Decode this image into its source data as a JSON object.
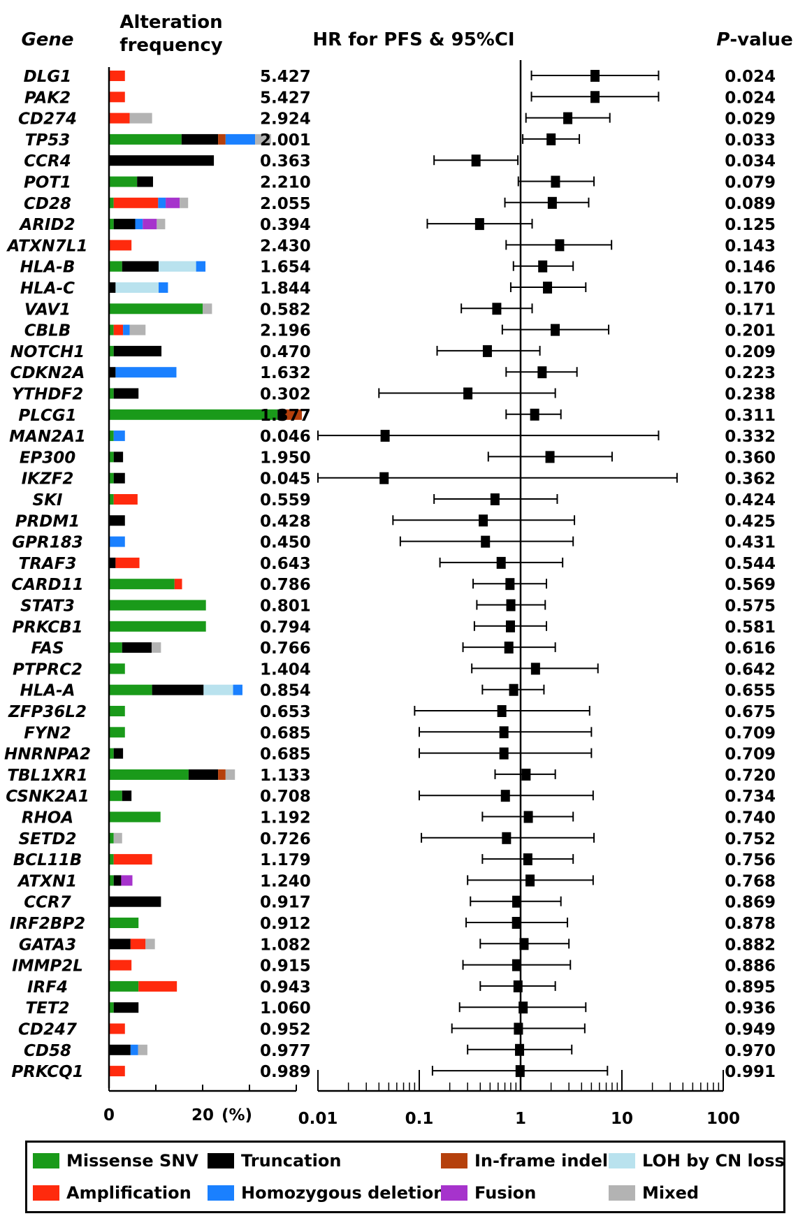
{
  "headers": {
    "gene": "Gene",
    "freq_line1": "Alteration",
    "freq_line2": "frequency",
    "hr": "HR for PFS & 95%CI",
    "p_italic": "P",
    "p_rest": "-value"
  },
  "colors": {
    "missense": "#1a9a1a",
    "truncation": "#000000",
    "inframe": "#b5400c",
    "loh": "#b9e2ee",
    "amplification": "#ff2a0d",
    "homdel": "#1a80ff",
    "fusion": "#a633cc",
    "mixed": "#b3b3b3"
  },
  "legend": [
    {
      "key": "missense",
      "label": "Missense SNV"
    },
    {
      "key": "truncation",
      "label": "Truncation"
    },
    {
      "key": "inframe",
      "label": "In-frame indel"
    },
    {
      "key": "loh",
      "label": "LOH by CN loss"
    },
    {
      "key": "amplification",
      "label": "Amplification"
    },
    {
      "key": "homdel",
      "label": "Homozygous deletion"
    },
    {
      "key": "fusion",
      "label": "Fusion"
    },
    {
      "key": "mixed",
      "label": "Mixed"
    }
  ],
  "chart_data": [
    {
      "type": "bar",
      "orientation": "horizontal",
      "stacked": true,
      "title": "Alteration frequency",
      "unit": "(%)",
      "xlim": [
        0,
        40
      ],
      "xticks": [
        "0",
        "20"
      ],
      "categories": [
        "DLG1",
        "PAK2",
        "CD274",
        "TP53",
        "CCR4",
        "POT1",
        "CD28",
        "ARID2",
        "ATXN7L1",
        "HLA-B",
        "HLA-C",
        "VAV1",
        "CBLB",
        "NOTCH1",
        "CDKN2A",
        "YTHDF2",
        "PLCG1",
        "MAN2A1",
        "EP300",
        "IKZF2",
        "SKI",
        "PRDM1",
        "GPR183",
        "TRAF3",
        "CARD11",
        "STAT3",
        "PRKCB1",
        "FAS",
        "PTPRC2",
        "HLA-A",
        "ZFP36L2",
        "FYN2",
        "HNRNPA2",
        "TBL1XR1",
        "CSNK2A1",
        "RHOA",
        "SETD2",
        "BCL11B",
        "ATXN1",
        "CCR7",
        "IRF2BP2",
        "GATA3",
        "IMMP2L",
        "IRF4",
        "TET2",
        "CD247",
        "CD58",
        "PRKCQ1"
      ],
      "series": [
        {
          "name": "Missense SNV",
          "key": "missense",
          "values": [
            0,
            0,
            0,
            15.5,
            0,
            6,
            1,
            1,
            0,
            2.8,
            0,
            20,
            1,
            1,
            0,
            1,
            36,
            1,
            1,
            1,
            1,
            0,
            0,
            0,
            14,
            20.7,
            20.7,
            2.8,
            3.4,
            9.2,
            3.4,
            3.4,
            1,
            17,
            2.8,
            11,
            1,
            1,
            1,
            0,
            6.3,
            0,
            0,
            6.3,
            1,
            0,
            0,
            0
          ]
        },
        {
          "name": "Truncation",
          "key": "truncation",
          "values": [
            0,
            0,
            0,
            7.8,
            22.4,
            3.4,
            0,
            4.6,
            0,
            7.8,
            1.4,
            0,
            0,
            10.2,
            1.4,
            5.3,
            1.4,
            0,
            2,
            2.4,
            0,
            3.4,
            0,
            1.4,
            0,
            0,
            0,
            6.3,
            0,
            11,
            0,
            0,
            2,
            6.3,
            2,
            0,
            0,
            0,
            1.6,
            11.1,
            0,
            4.6,
            0,
            0,
            5.3,
            0,
            4.6,
            0
          ]
        },
        {
          "name": "In-frame indel",
          "key": "inframe",
          "values": [
            0,
            0,
            0,
            1.6,
            0,
            0,
            0,
            0,
            0,
            0,
            0,
            0,
            0,
            0,
            0,
            0,
            3.8,
            0,
            0,
            0,
            0,
            0,
            0,
            0,
            0,
            0,
            0,
            0,
            0,
            0,
            0,
            0,
            0,
            1.6,
            0,
            0,
            0,
            0,
            0,
            0,
            0,
            0,
            0,
            0,
            0,
            0,
            0,
            0
          ]
        },
        {
          "name": "LOH by CN loss",
          "key": "loh",
          "values": [
            0,
            0,
            0,
            0,
            0,
            0,
            0,
            0,
            0,
            8,
            9.2,
            0,
            0,
            0,
            0,
            0,
            0,
            0,
            0,
            0,
            0,
            0,
            0,
            0,
            0,
            0,
            0,
            0,
            0,
            6.3,
            0,
            0,
            0,
            0,
            0,
            0,
            0,
            0,
            0,
            0,
            0,
            0,
            0,
            0,
            0,
            0,
            0,
            0
          ]
        },
        {
          "name": "Amplification",
          "key": "amplification",
          "values": [
            3.4,
            3.4,
            4.4,
            0,
            0,
            0,
            9.5,
            0,
            4.8,
            0,
            0,
            0,
            2,
            0,
            0,
            0,
            0,
            0,
            0,
            0,
            5.1,
            0,
            0,
            5.1,
            1.6,
            0,
            0,
            0,
            0,
            0,
            0,
            0,
            0,
            0,
            0,
            0,
            0,
            8.2,
            0,
            0,
            0,
            3.2,
            4.8,
            8.2,
            0,
            3.4,
            0,
            3.4
          ]
        },
        {
          "name": "Homozygous deletion",
          "key": "homdel",
          "values": [
            0,
            0,
            0,
            6.3,
            0,
            0,
            1.6,
            1.6,
            0,
            2,
            2,
            0,
            1.4,
            0,
            13,
            0,
            0,
            2.4,
            0,
            0,
            0,
            0,
            3.4,
            0,
            0,
            0,
            0,
            0,
            0,
            2,
            0,
            0,
            0,
            0,
            0,
            0,
            0,
            0,
            0,
            0,
            0,
            0,
            0,
            0,
            0,
            0,
            1.6,
            0
          ]
        },
        {
          "name": "Fusion",
          "key": "fusion",
          "values": [
            0,
            0,
            0,
            0,
            0,
            0,
            3,
            3,
            0,
            0,
            0,
            0,
            0,
            0,
            0,
            0,
            0,
            0,
            0,
            0,
            0,
            0,
            0,
            0,
            0,
            0,
            0,
            0,
            0,
            0,
            0,
            0,
            0,
            0,
            0,
            0,
            0,
            0,
            2.4,
            0,
            0,
            0,
            0,
            0,
            0,
            0,
            0,
            0
          ]
        },
        {
          "name": "Mixed",
          "key": "mixed",
          "values": [
            0,
            0,
            4.8,
            3.4,
            0,
            0,
            1.8,
            1.8,
            0,
            0,
            0,
            2,
            3.4,
            0,
            0,
            0,
            0,
            0,
            0,
            0,
            0,
            0,
            0,
            0,
            0,
            0,
            0,
            2,
            0,
            0,
            0,
            0,
            0,
            2,
            0,
            0,
            1.8,
            0,
            0,
            0,
            0,
            2,
            0,
            0,
            0,
            0,
            2,
            0
          ]
        }
      ]
    },
    {
      "type": "scatter",
      "subtype": "forest",
      "title": "HR for PFS & 95%CI",
      "x_scale": "log",
      "xlim": [
        0.01,
        100
      ],
      "xticks": [
        "0.01",
        "0.1",
        "1",
        "10",
        "100"
      ],
      "reference_line": 1,
      "genes": [
        "DLG1",
        "PAK2",
        "CD274",
        "TP53",
        "CCR4",
        "POT1",
        "CD28",
        "ARID2",
        "ATXN7L1",
        "HLA-B",
        "HLA-C",
        "VAV1",
        "CBLB",
        "NOTCH1",
        "CDKN2A",
        "YTHDF2",
        "PLCG1",
        "MAN2A1",
        "EP300",
        "IKZF2",
        "SKI",
        "PRDM1",
        "GPR183",
        "TRAF3",
        "CARD11",
        "STAT3",
        "PRKCB1",
        "FAS",
        "PTPRC2",
        "HLA-A",
        "ZFP36L2",
        "FYN2",
        "HNRNPA2",
        "TBL1XR1",
        "CSNK2A1",
        "RHOA",
        "SETD2",
        "BCL11B",
        "ATXN1",
        "CCR7",
        "IRF2BP2",
        "GATA3",
        "IMMP2L",
        "IRF4",
        "TET2",
        "CD247",
        "CD58",
        "PRKCQ1"
      ],
      "hr": [
        "5.427",
        "5.427",
        "2.924",
        "2.001",
        "0.363",
        "2.210",
        "2.055",
        "0.394",
        "2.430",
        "1.654",
        "1.844",
        "0.582",
        "2.196",
        "0.470",
        "1.632",
        "0.302",
        "1.377",
        "0.046",
        "1.950",
        "0.045",
        "0.559",
        "0.428",
        "0.450",
        "0.643",
        "0.786",
        "0.801",
        "0.794",
        "0.766",
        "1.404",
        "0.854",
        "0.653",
        "0.685",
        "0.685",
        "1.133",
        "0.708",
        "1.192",
        "0.726",
        "1.179",
        "1.240",
        "0.917",
        "0.912",
        "1.082",
        "0.915",
        "0.943",
        "1.060",
        "0.952",
        "0.977",
        "0.989"
      ],
      "ci_low": [
        1.28,
        1.28,
        1.13,
        1.05,
        0.14,
        0.95,
        0.7,
        0.12,
        0.72,
        0.85,
        0.8,
        0.26,
        0.66,
        0.15,
        0.72,
        0.04,
        0.72,
        0.01,
        0.48,
        0.01,
        0.14,
        0.055,
        0.065,
        0.16,
        0.34,
        0.37,
        0.35,
        0.27,
        0.33,
        0.42,
        0.09,
        0.1,
        0.1,
        0.56,
        0.1,
        0.42,
        0.105,
        0.42,
        0.3,
        0.32,
        0.29,
        0.4,
        0.27,
        0.4,
        0.25,
        0.21,
        0.3,
        0.135
      ],
      "ci_high": [
        23,
        23,
        7.6,
        3.8,
        0.94,
        5.3,
        4.7,
        1.3,
        7.9,
        3.3,
        4.4,
        1.3,
        7.4,
        1.55,
        3.6,
        2.2,
        2.5,
        23,
        8,
        35,
        2.3,
        3.4,
        3.3,
        2.6,
        1.8,
        1.75,
        1.8,
        2.2,
        5.8,
        1.7,
        4.8,
        5,
        5,
        2.2,
        5.2,
        3.3,
        5.3,
        3.3,
        5.2,
        2.5,
        2.9,
        3,
        3.1,
        2.2,
        4.4,
        4.3,
        3.2,
        7.2
      ],
      "p_values": [
        "0.024",
        "0.024",
        "0.029",
        "0.033",
        "0.034",
        "0.079",
        "0.089",
        "0.125",
        "0.143",
        "0.146",
        "0.170",
        "0.171",
        "0.201",
        "0.209",
        "0.223",
        "0.238",
        "0.311",
        "0.332",
        "0.360",
        "0.362",
        "0.424",
        "0.425",
        "0.431",
        "0.544",
        "0.569",
        "0.575",
        "0.581",
        "0.616",
        "0.642",
        "0.655",
        "0.675",
        "0.709",
        "0.709",
        "0.720",
        "0.734",
        "0.740",
        "0.752",
        "0.756",
        "0.768",
        "0.869",
        "0.878",
        "0.882",
        "0.886",
        "0.895",
        "0.936",
        "0.949",
        "0.970",
        "0.991"
      ]
    }
  ]
}
